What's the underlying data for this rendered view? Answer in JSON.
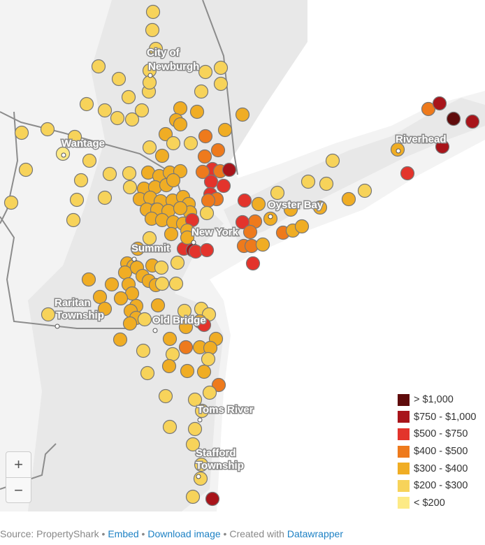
{
  "map": {
    "places": [
      "City of Newburgh",
      "Wantage",
      "Riverhead",
      "Oyster Bay",
      "New York",
      "Summit",
      "Raritan Township",
      "Old Bridge",
      "Toms River",
      "Stafford Township"
    ],
    "category_colors": [
      "#fdea86",
      "#f7d35a",
      "#f0ad24",
      "#ee7a1c",
      "#e3342c",
      "#a8141a",
      "#5f0b0b"
    ]
  },
  "legend": [
    {
      "label": "> $1,000",
      "color": "#5f0b0b"
    },
    {
      "label": "$750 - $1,000",
      "color": "#a8141a"
    },
    {
      "label": "$500 - $750",
      "color": "#e3342c"
    },
    {
      "label": "$400 - $500",
      "color": "#ee7a1c"
    },
    {
      "label": "$300 - $400",
      "color": "#f0ad24"
    },
    {
      "label": "$200 - $300",
      "color": "#f7d35a"
    },
    {
      "label": "< $200",
      "color": "#fdea86"
    }
  ],
  "zoom": {
    "in": "+",
    "out": "−"
  },
  "footer": {
    "source": "Source: PropertyShark",
    "sep1": " • ",
    "embed": "Embed",
    "sep2": "  • ",
    "download": "Download image",
    "sep3": " • Created with ",
    "datawrapper": "Datawrapper"
  }
}
